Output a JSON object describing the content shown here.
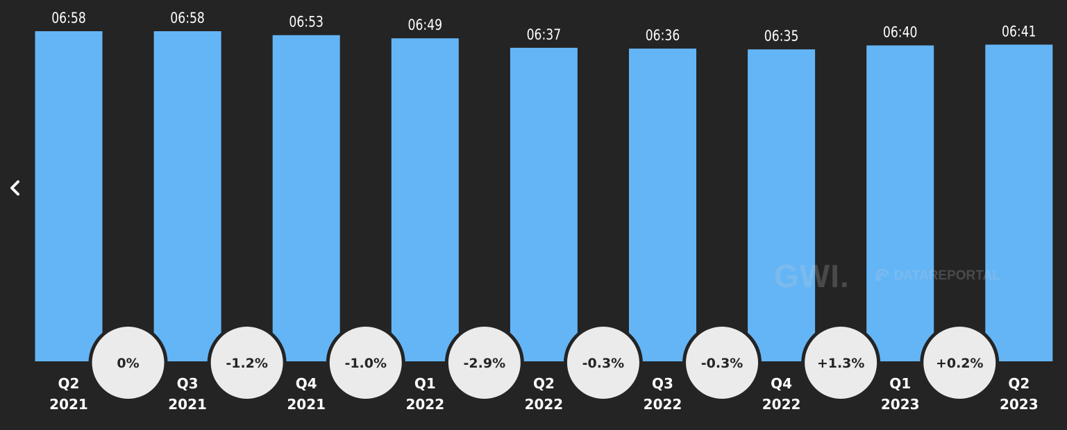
{
  "nav": {
    "prev_icon": "chevron-left-icon"
  },
  "watermark": {
    "gwi": "GWI.",
    "datareportal": "DATAREPORTAL"
  },
  "colors": {
    "background": "#242424",
    "bar": "#64b5f6",
    "bubble": "#ebebeb",
    "bubble_ring": "#242424",
    "text": "#ffffff",
    "bubble_text": "#242424"
  },
  "chart_data": {
    "type": "bar",
    "categories": [
      [
        "Q2",
        "2021"
      ],
      [
        "Q3",
        "2021"
      ],
      [
        "Q4",
        "2021"
      ],
      [
        "Q1",
        "2022"
      ],
      [
        "Q2",
        "2022"
      ],
      [
        "Q3",
        "2022"
      ],
      [
        "Q4",
        "2022"
      ],
      [
        "Q1",
        "2023"
      ],
      [
        "Q2",
        "2023"
      ]
    ],
    "values_minutes": [
      418,
      418,
      413,
      409,
      397,
      396,
      395,
      400,
      401
    ],
    "data_labels": [
      "06:58",
      "06:58",
      "06:53",
      "06:49",
      "06:37",
      "06:36",
      "06:35",
      "06:40",
      "06:41"
    ],
    "changes": [
      "0%",
      "-1.2%",
      "-1.0%",
      "-2.9%",
      "-0.3%",
      "-0.3%",
      "+1.3%",
      "+0.2%"
    ],
    "ylim": [
      0,
      418
    ],
    "title": "",
    "xlabel": "",
    "ylabel": ""
  }
}
